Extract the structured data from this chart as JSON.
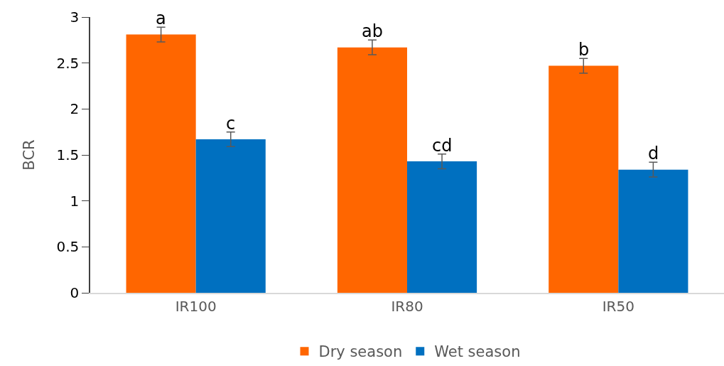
{
  "chart_data": {
    "type": "bar",
    "ylabel": "BCR",
    "categories": [
      "IR100",
      "IR80",
      "IR50"
    ],
    "series": [
      {
        "name": "Dry season",
        "color": "#ff6600",
        "values": [
          2.81,
          2.67,
          2.47
        ],
        "errors": [
          0.08,
          0.08,
          0.08
        ],
        "value_labels": [
          "a",
          "ab",
          "b"
        ]
      },
      {
        "name": "Wet season",
        "color": "#0070c0",
        "values": [
          1.67,
          1.43,
          1.34
        ],
        "errors": [
          0.08,
          0.08,
          0.08
        ],
        "value_labels": [
          "c",
          "cd",
          "d"
        ]
      }
    ],
    "ylim": [
      0,
      3
    ],
    "yticks": [
      0,
      0.5,
      1,
      1.5,
      2,
      2.5,
      3
    ],
    "grid": false,
    "legend": "bottom"
  }
}
